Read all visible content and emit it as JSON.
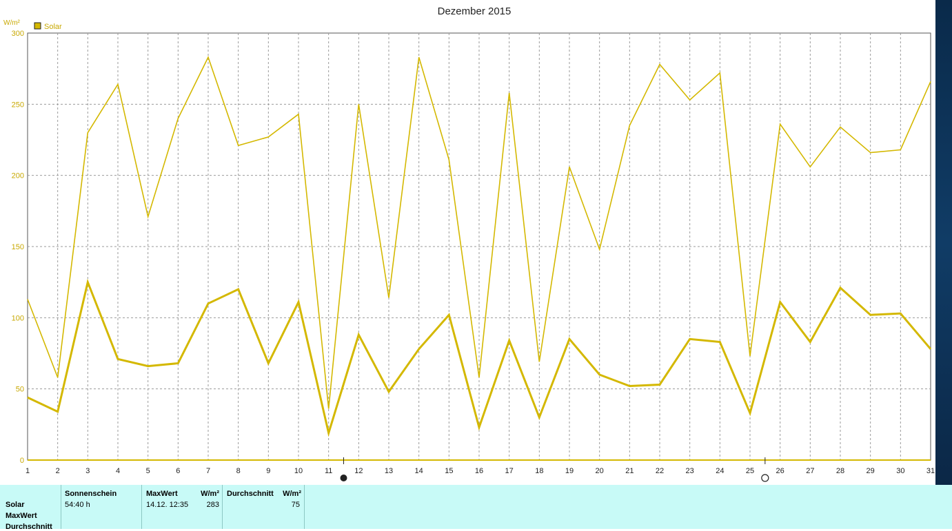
{
  "chart_data": {
    "type": "line",
    "title": "Dezember 2015",
    "ylabel": "W/m²",
    "ylim": [
      0,
      300
    ],
    "yticks": [
      0,
      50,
      100,
      150,
      200,
      250,
      300
    ],
    "categories": [
      "1",
      "2",
      "3",
      "4",
      "5",
      "6",
      "7",
      "8",
      "9",
      "10",
      "11",
      "12",
      "13",
      "14",
      "15",
      "16",
      "17",
      "18",
      "19",
      "20",
      "21",
      "22",
      "23",
      "24",
      "25",
      "26",
      "27",
      "28",
      "29",
      "30",
      "31"
    ],
    "legend": "top-left",
    "grid": true,
    "series": [
      {
        "name": "Solar",
        "role": "max",
        "color": "#d4b800",
        "values": [
          113,
          58,
          230,
          264,
          171,
          240,
          283,
          221,
          227,
          243,
          36,
          250,
          114,
          283,
          211,
          58,
          258,
          69,
          206,
          148,
          235,
          278,
          253,
          272,
          73,
          236,
          206,
          234,
          216,
          218,
          266
        ]
      },
      {
        "role": "average",
        "color": "#d4b800",
        "values": [
          44,
          34,
          125,
          71,
          66,
          68,
          110,
          120,
          68,
          111,
          19,
          88,
          48,
          78,
          102,
          23,
          84,
          30,
          85,
          60,
          52,
          53,
          85,
          83,
          33,
          111,
          83,
          121,
          102,
          103,
          78
        ]
      }
    ],
    "annotations": [
      {
        "type": "new-moon",
        "x": 11.5
      },
      {
        "type": "full-moon",
        "x": 25.5
      }
    ]
  },
  "info": {
    "rows": [
      "Solar",
      "MaxWert",
      "Durchschnitt"
    ],
    "sonnenschein_header": "Sonnenschein",
    "sonnenschein_value": "54:40 h",
    "maxwert_header": "MaxWert",
    "maxwert_unit": "W/m²",
    "maxwert_date": "14.12.  12:35",
    "maxwert_value": "283",
    "durchschnitt_header": "Durchschnitt",
    "durchschnitt_unit": "W/m²",
    "durchschnitt_value": "75"
  }
}
